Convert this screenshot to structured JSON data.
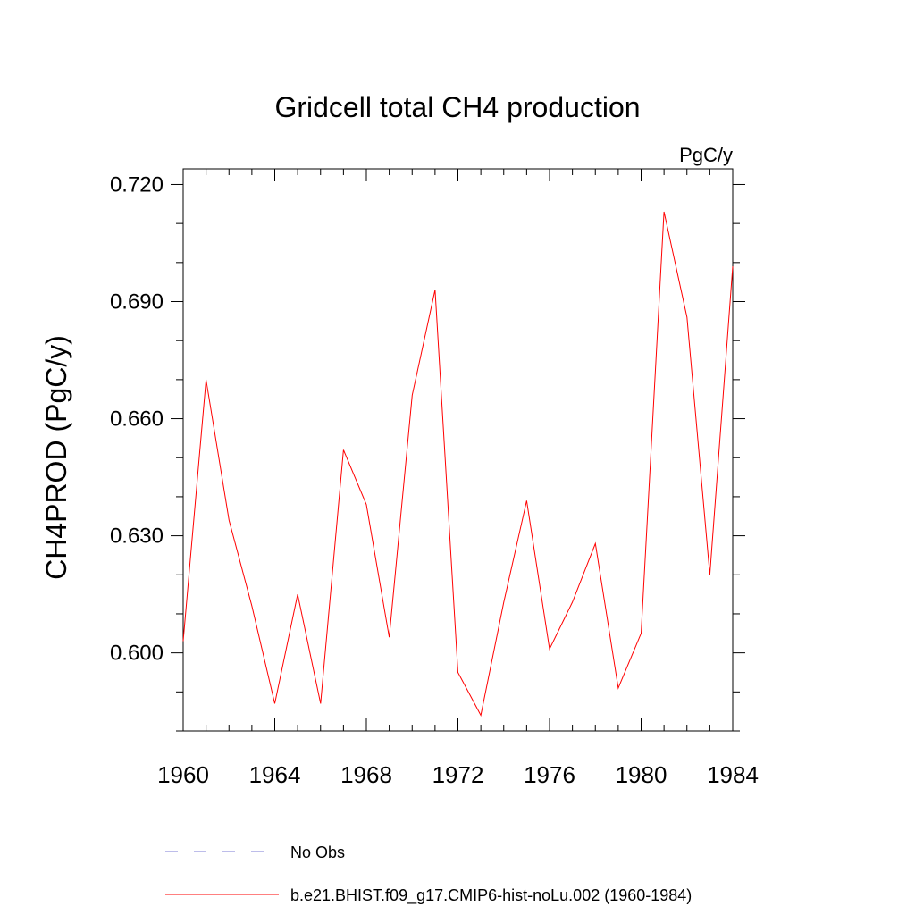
{
  "chart_data": {
    "type": "line",
    "title": "Gridcell total CH4 production",
    "units_label": "PgC/y",
    "ylabel": "CH4PROD  (PgC/y)",
    "xlabel": "",
    "xlim": [
      1960,
      1984
    ],
    "ylim": [
      0.58,
      0.724
    ],
    "xticks": [
      1960,
      1964,
      1968,
      1972,
      1976,
      1980,
      1984
    ],
    "xtick_labels": [
      "1960",
      "1964",
      "1968",
      "1972",
      "1976",
      "1980",
      "1984"
    ],
    "yticks": [
      0.6,
      0.63,
      0.66,
      0.69,
      0.72
    ],
    "ytick_labels": [
      "0.600",
      "0.630",
      "0.660",
      "0.690",
      "0.720"
    ],
    "grid": false,
    "legend_position": "bottom",
    "series": [
      {
        "name": "b.e21.BHIST.f09_g17.CMIP6-hist-noLu.002 (1960-1984)",
        "color": "#ff0000",
        "style": "solid",
        "x": [
          1960,
          1961,
          1962,
          1963,
          1964,
          1965,
          1966,
          1967,
          1968,
          1969,
          1970,
          1971,
          1972,
          1973,
          1974,
          1975,
          1976,
          1977,
          1978,
          1979,
          1980,
          1981,
          1982,
          1983,
          1984
        ],
        "values": [
          0.603,
          0.67,
          0.634,
          0.612,
          0.587,
          0.615,
          0.587,
          0.652,
          0.638,
          0.604,
          0.666,
          0.693,
          0.595,
          0.584,
          0.613,
          0.639,
          0.601,
          0.613,
          0.628,
          0.591,
          0.605,
          0.713,
          0.686,
          0.62,
          0.699
        ]
      }
    ],
    "legend": [
      {
        "label": "No Obs",
        "color": "#7b7bd6",
        "style": "dashed"
      },
      {
        "label": "b.e21.BHIST.f09_g17.CMIP6-hist-noLu.002 (1960-1984)",
        "color": "#ff0000",
        "style": "solid"
      }
    ]
  }
}
